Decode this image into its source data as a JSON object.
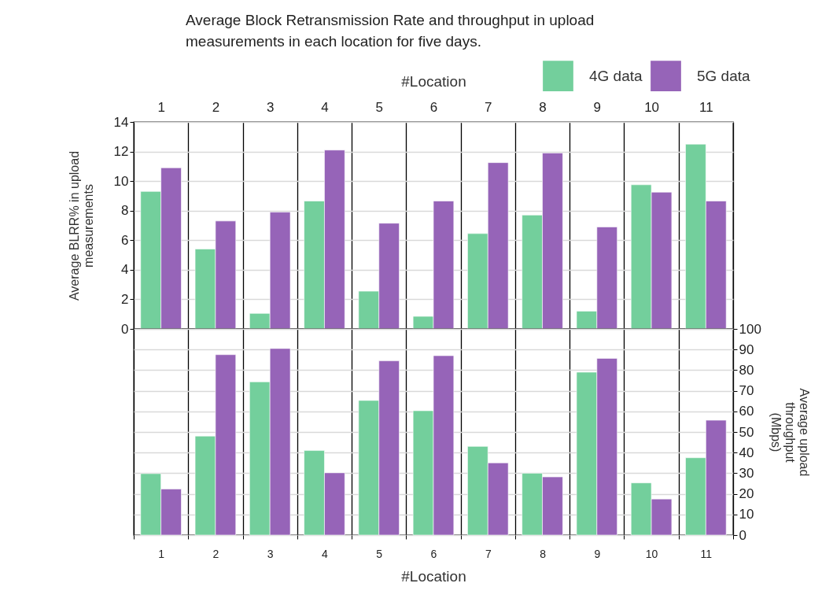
{
  "chart_data": [
    {
      "type": "bar",
      "title": "Average Block Retransmission Rate and throughput in upload measurements in each location for five days.",
      "x2label": "#Location",
      "ylabel": "Average BLRR% in upload measurements",
      "categories": [
        "1",
        "2",
        "3",
        "4",
        "5",
        "6",
        "7",
        "8",
        "9",
        "10",
        "11"
      ],
      "series": [
        {
          "name": "4G data",
          "color": "#73cf9c",
          "values": [
            9.3,
            5.4,
            1.05,
            8.65,
            2.55,
            0.85,
            6.45,
            7.7,
            1.2,
            9.75,
            12.5
          ]
        },
        {
          "name": "5G data",
          "color": "#9664b8",
          "values": [
            10.9,
            7.3,
            7.9,
            12.1,
            7.15,
            8.65,
            11.25,
            11.9,
            6.9,
            9.25,
            8.65
          ]
        }
      ],
      "ylim": [
        0,
        14
      ],
      "yticks": [
        0,
        2,
        4,
        6,
        8,
        10,
        12,
        14
      ],
      "grid": true,
      "legend": "top right"
    },
    {
      "type": "bar",
      "xlabel": "#Location",
      "y2label": "Average upload throughput (Mbps)",
      "categories": [
        "1",
        "2",
        "3",
        "4",
        "5",
        "6",
        "7",
        "8",
        "9",
        "10",
        "11"
      ],
      "series": [
        {
          "color": "#73cf9c",
          "axis": "y2",
          "values": [
            29.8,
            48,
            74.3,
            41,
            65.3,
            60.3,
            43,
            30,
            79,
            25.3,
            37.5
          ]
        },
        {
          "color": "#9664b8",
          "axis": "y2",
          "values": [
            22.3,
            87.5,
            90.5,
            30.2,
            84.5,
            87,
            35,
            28.2,
            85.7,
            17.5,
            55.7
          ]
        }
      ],
      "y2lim": [
        0,
        100
      ],
      "y2ticks": [
        0,
        10,
        20,
        30,
        40,
        50,
        60,
        70,
        80,
        90,
        100
      ],
      "grid": true
    }
  ]
}
